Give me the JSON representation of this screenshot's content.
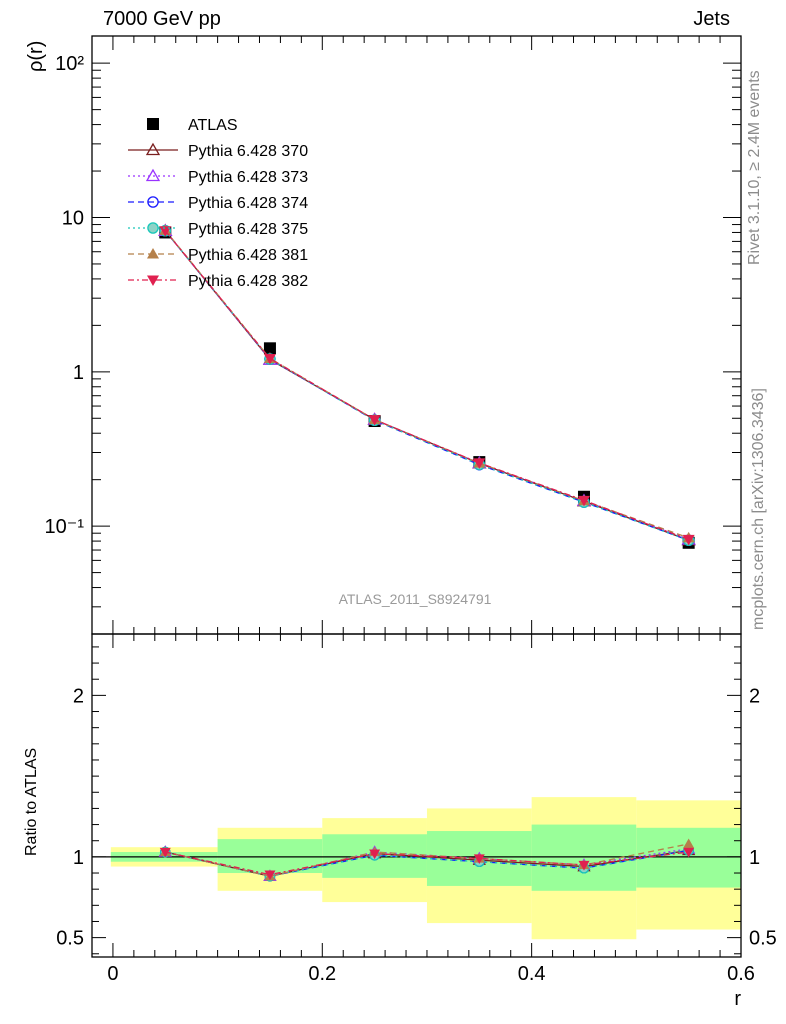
{
  "header": {
    "left": "7000 GeV pp",
    "right": "Jets"
  },
  "side": {
    "top": "Rivet 3.1.10, ≥ 2.4M events",
    "bottom": "mcplots.cern.ch [arXiv:1306.3436]"
  },
  "watermark": "ATLAS_2011_S8924791",
  "chart_data": [
    {
      "type": "line",
      "panel": "main",
      "ylabel": "ρ(r)",
      "yscale": "log",
      "ylim": [
        0.02,
        150
      ],
      "yticklabels": [
        "10⁻¹",
        "1",
        "10",
        "10²"
      ],
      "xlim": [
        -0.02,
        0.6
      ],
      "x": [
        0.05,
        0.15,
        0.25,
        0.35,
        0.45,
        0.55
      ],
      "series": [
        {
          "name": "ATLAS",
          "values": [
            8.0,
            1.42,
            0.48,
            0.26,
            0.155,
            0.078
          ],
          "color": "#000000",
          "marker": "filled-square",
          "dash": "none"
        },
        {
          "name": "Pythia 6.428 370",
          "values": [
            8.2,
            1.2,
            0.49,
            0.255,
            0.145,
            0.081
          ],
          "color": "#7a1f1f",
          "marker": "open-triangle",
          "dash": "solid"
        },
        {
          "name": "Pythia 6.428 373",
          "values": [
            8.2,
            1.2,
            0.49,
            0.256,
            0.146,
            0.082
          ],
          "color": "#9933ff",
          "marker": "open-triangle",
          "dash": "dotted"
        },
        {
          "name": "Pythia 6.428 374",
          "values": [
            8.2,
            1.21,
            0.485,
            0.25,
            0.143,
            0.081
          ],
          "color": "#1a1aff",
          "marker": "open-circle",
          "dash": "dashed"
        },
        {
          "name": "Pythia 6.428 375",
          "values": [
            8.2,
            1.21,
            0.485,
            0.251,
            0.143,
            0.081
          ],
          "color": "#19c7b9",
          "marker": "open-circle-cyan",
          "dash": "dotted"
        },
        {
          "name": "Pythia 6.428 381",
          "values": [
            8.25,
            1.22,
            0.49,
            0.256,
            0.146,
            0.084
          ],
          "color": "#b5804a",
          "marker": "filled-triangle",
          "dash": "dashed"
        },
        {
          "name": "Pythia 6.428 382",
          "values": [
            8.2,
            1.22,
            0.49,
            0.257,
            0.147,
            0.082
          ],
          "color": "#e0204f",
          "marker": "filled-triangle-down",
          "dash": "dashdot"
        }
      ],
      "legend": "top-left"
    },
    {
      "type": "line",
      "panel": "ratio",
      "xlabel": "r",
      "ylabel": "Ratio to ATLAS",
      "ylim": [
        0.38,
        2.38
      ],
      "yticks": [
        0.5,
        1,
        2
      ],
      "xlim": [
        -0.02,
        0.6
      ],
      "xticks": [
        0,
        0.2,
        0.4,
        0.6
      ],
      "x": [
        0.05,
        0.15,
        0.25,
        0.35,
        0.45,
        0.55
      ],
      "bands": {
        "bin_edges": [
          -0.002,
          0.1,
          0.2,
          0.3,
          0.4,
          0.5,
          0.6
        ],
        "stat_low": [
          0.97,
          0.9,
          0.87,
          0.82,
          0.79,
          0.81
        ],
        "stat_high": [
          1.03,
          1.11,
          1.14,
          1.16,
          1.2,
          1.18
        ],
        "total_low": [
          0.94,
          0.79,
          0.72,
          0.59,
          0.49,
          0.55
        ],
        "total_high": [
          1.06,
          1.18,
          1.24,
          1.3,
          1.37,
          1.35
        ],
        "stat_color": "#99ff99",
        "total_color": "#ffff99"
      },
      "series": [
        {
          "name": "Pythia 6.428 370",
          "values": [
            1.03,
            0.88,
            1.02,
            0.98,
            0.94,
            1.04
          ]
        },
        {
          "name": "Pythia 6.428 373",
          "values": [
            1.03,
            0.88,
            1.03,
            0.99,
            0.95,
            1.05
          ]
        },
        {
          "name": "Pythia 6.428 374",
          "values": [
            1.03,
            0.88,
            1.01,
            0.97,
            0.93,
            1.04
          ]
        },
        {
          "name": "Pythia 6.428 375",
          "values": [
            1.03,
            0.88,
            1.01,
            0.97,
            0.93,
            1.04
          ]
        },
        {
          "name": "Pythia 6.428 381",
          "values": [
            1.03,
            0.88,
            1.03,
            0.99,
            0.95,
            1.08
          ]
        },
        {
          "name": "Pythia 6.428 382",
          "values": [
            1.03,
            0.89,
            1.02,
            0.99,
            0.95,
            1.03
          ]
        }
      ]
    }
  ]
}
